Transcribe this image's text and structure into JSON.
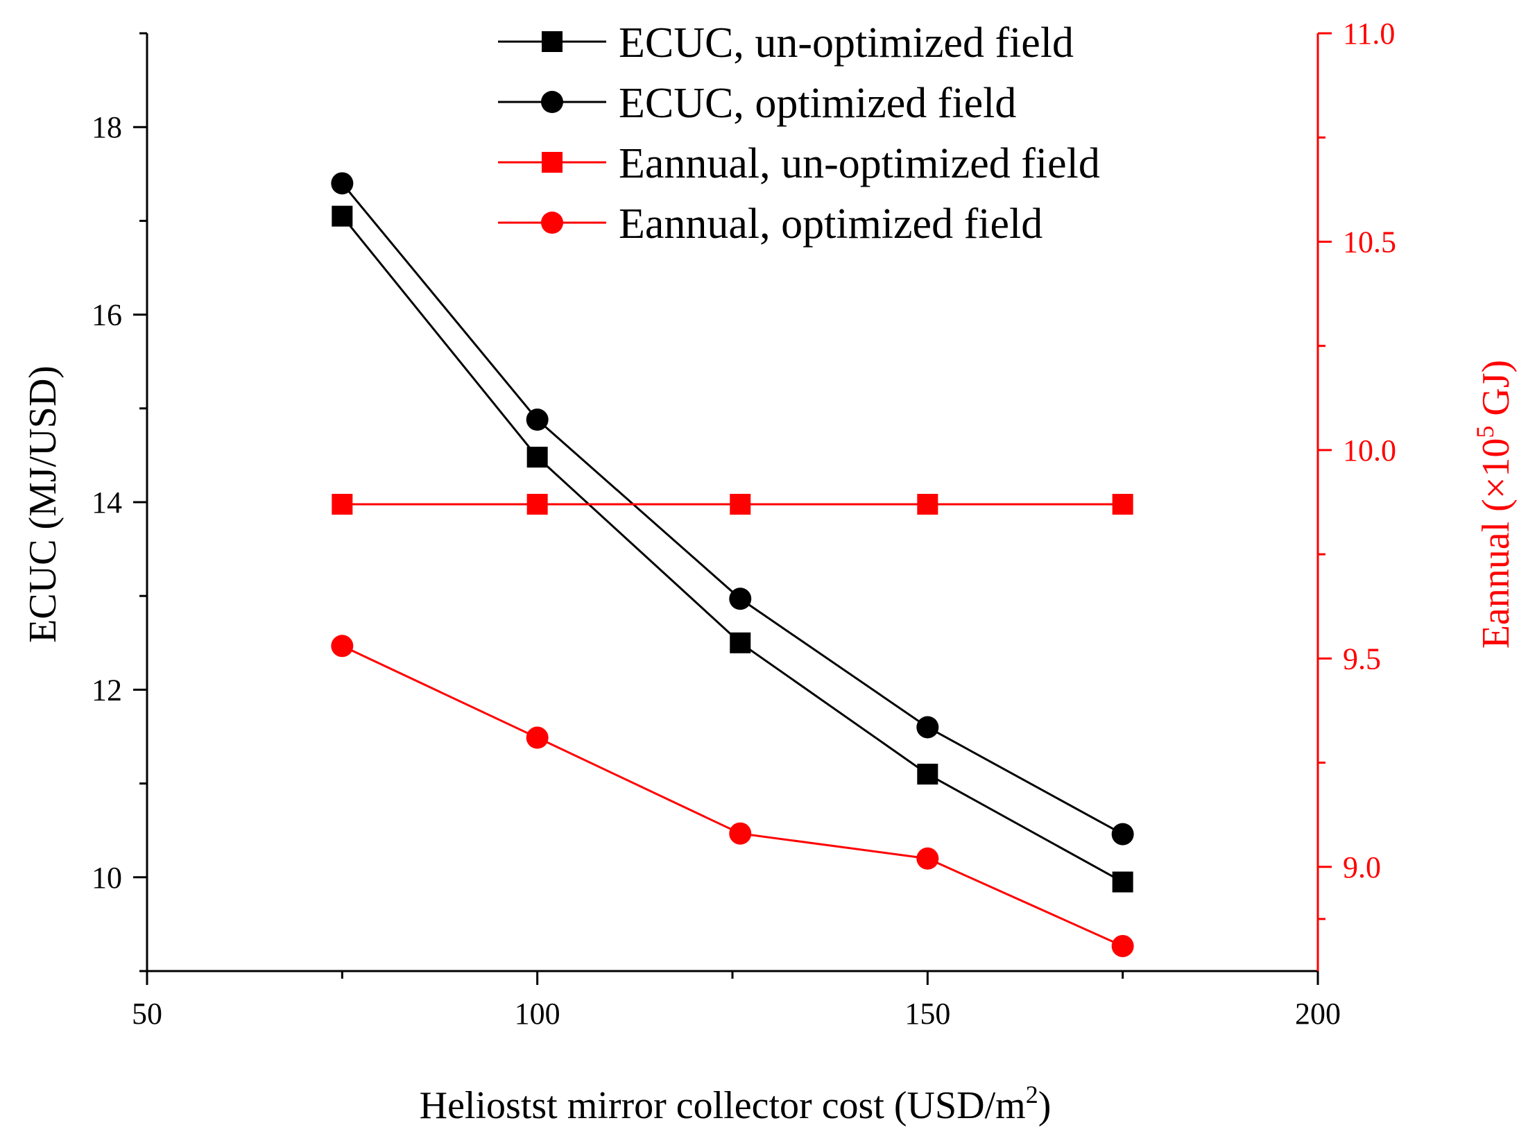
{
  "chart_data": {
    "type": "line",
    "title": "",
    "xlabel": "Heliostst mirror collector cost (USD/m",
    "xlabel_sup": "2",
    "xlabel_end": ")",
    "ylabel": "ECUC (MJ/USD)",
    "y2label": "Eannual (×10",
    "y2label_sup": "5",
    "y2label_end": " GJ)",
    "x": [
      75,
      100,
      126,
      150,
      175
    ],
    "xlim": [
      50,
      200
    ],
    "ylim": [
      9,
      19
    ],
    "y2lim": [
      8.75,
      11.0
    ],
    "xticks": [
      50,
      100,
      150,
      200
    ],
    "xtick_labels": [
      "50",
      "100",
      "150",
      "200"
    ],
    "yticks": [
      10,
      12,
      14,
      16,
      18
    ],
    "ytick_labels": [
      "10",
      "12",
      "14",
      "16",
      "18"
    ],
    "y2ticks": [
      9.0,
      9.5,
      10.0,
      10.5,
      11.0
    ],
    "y2tick_labels": [
      "9.0",
      "9.5",
      "10.0",
      "10.5",
      "11.0"
    ],
    "legend_position": "top-center",
    "grid": false,
    "colors": {
      "axis_left": "#000000",
      "axis_right": "#ff0000"
    },
    "series": [
      {
        "name": "ECUC, un-optimized field",
        "axis": "left",
        "marker": "square",
        "color": "#000000",
        "values": [
          17.05,
          14.48,
          12.5,
          11.1,
          9.95
        ]
      },
      {
        "name": "ECUC, optimized field",
        "axis": "left",
        "marker": "circle",
        "color": "#000000",
        "values": [
          17.4,
          14.88,
          12.97,
          11.6,
          10.46
        ]
      },
      {
        "name": "Eannual, un-optimized field",
        "axis": "right",
        "marker": "square",
        "color": "#ff0000",
        "values": [
          9.87,
          9.87,
          9.87,
          9.87,
          9.87
        ]
      },
      {
        "name": "Eannual, optimized field",
        "axis": "right",
        "marker": "circle",
        "color": "#ff0000",
        "values": [
          9.53,
          9.31,
          9.08,
          9.02,
          8.81
        ]
      }
    ]
  }
}
